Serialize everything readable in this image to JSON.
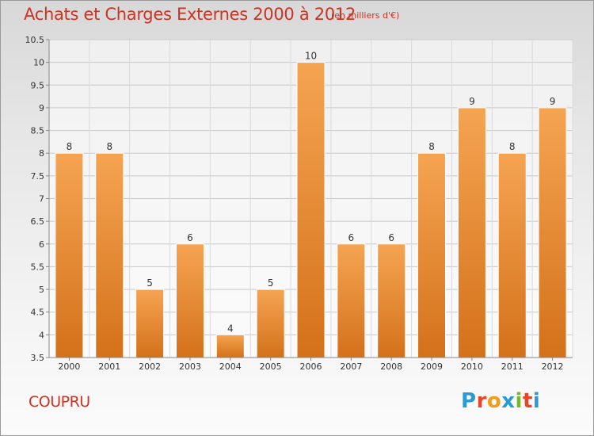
{
  "header": {
    "title": "Achats et Charges Externes 2000 à 2012",
    "subtitle": "(en milliers d'€)"
  },
  "footer": {
    "commune": "COUPRU",
    "logo_text": "Proxiti",
    "logo_colors": [
      "#2a9ad4",
      "#e8462a",
      "#f39a1c",
      "#2a9ad4",
      "#76b82a",
      "#e8462a",
      "#2a9ad4"
    ]
  },
  "colors": {
    "bar_top": "#f5a452",
    "bar_bottom": "#d4711a",
    "title": "#cc3322"
  },
  "chart_data": {
    "type": "bar",
    "title": "Achats et Charges Externes 2000 à 2012",
    "subtitle": "(en milliers d'€)",
    "categories": [
      "2000",
      "2001",
      "2002",
      "2003",
      "2004",
      "2005",
      "2006",
      "2007",
      "2008",
      "2009",
      "2010",
      "2011",
      "2012"
    ],
    "values": [
      8,
      8,
      5,
      6,
      4,
      5,
      10,
      6,
      6,
      8,
      9,
      8,
      9
    ],
    "data_labels": [
      "8",
      "8",
      "5",
      "6",
      "4",
      "5",
      "10",
      "6",
      "6",
      "8",
      "9",
      "8",
      "9"
    ],
    "ylim": [
      3.5,
      10.5
    ],
    "yticks": [
      "3.5",
      "4",
      "4.5",
      "5",
      "5.5",
      "6",
      "6.5",
      "7",
      "7.5",
      "8",
      "8.5",
      "9",
      "9.5",
      "10",
      "10.5"
    ],
    "grid": true,
    "xlabel": "",
    "ylabel": ""
  }
}
